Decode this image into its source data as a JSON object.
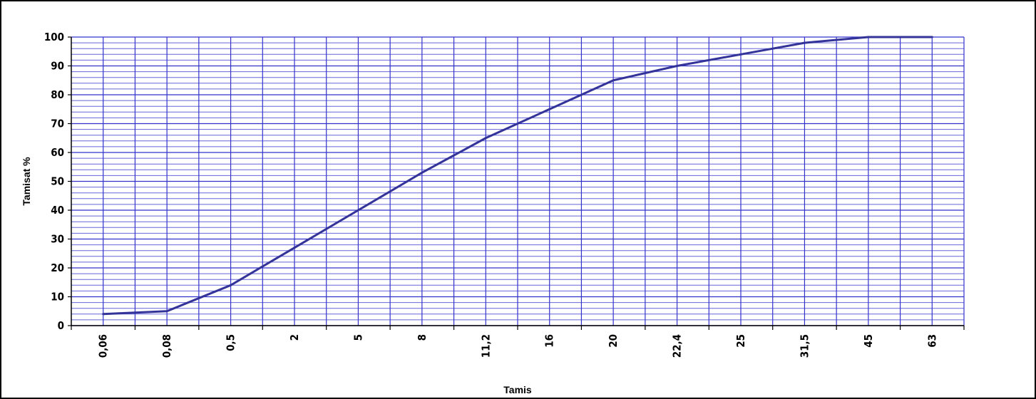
{
  "chart_data": {
    "type": "line",
    "title": "",
    "xlabel": "Tamis",
    "ylabel": "Tamisat %",
    "categories": [
      "0,06",
      "0,08",
      "0,5",
      "2",
      "5",
      "8",
      "11,2",
      "16",
      "20",
      "22,4",
      "25",
      "31,5",
      "45",
      "63"
    ],
    "series": [
      {
        "values": [
          4,
          5,
          14,
          27,
          40,
          53,
          65,
          75,
          85,
          90,
          94,
          98,
          100,
          100
        ]
      }
    ],
    "ylim": [
      0,
      100
    ],
    "yticks": [
      0,
      10,
      20,
      30,
      40,
      50,
      60,
      70,
      80,
      90,
      100
    ],
    "grid": true,
    "minor_grid": true,
    "legend": "none",
    "colors": {
      "line": "#333399",
      "grid": "#3333cc",
      "axis": "#000000"
    }
  }
}
